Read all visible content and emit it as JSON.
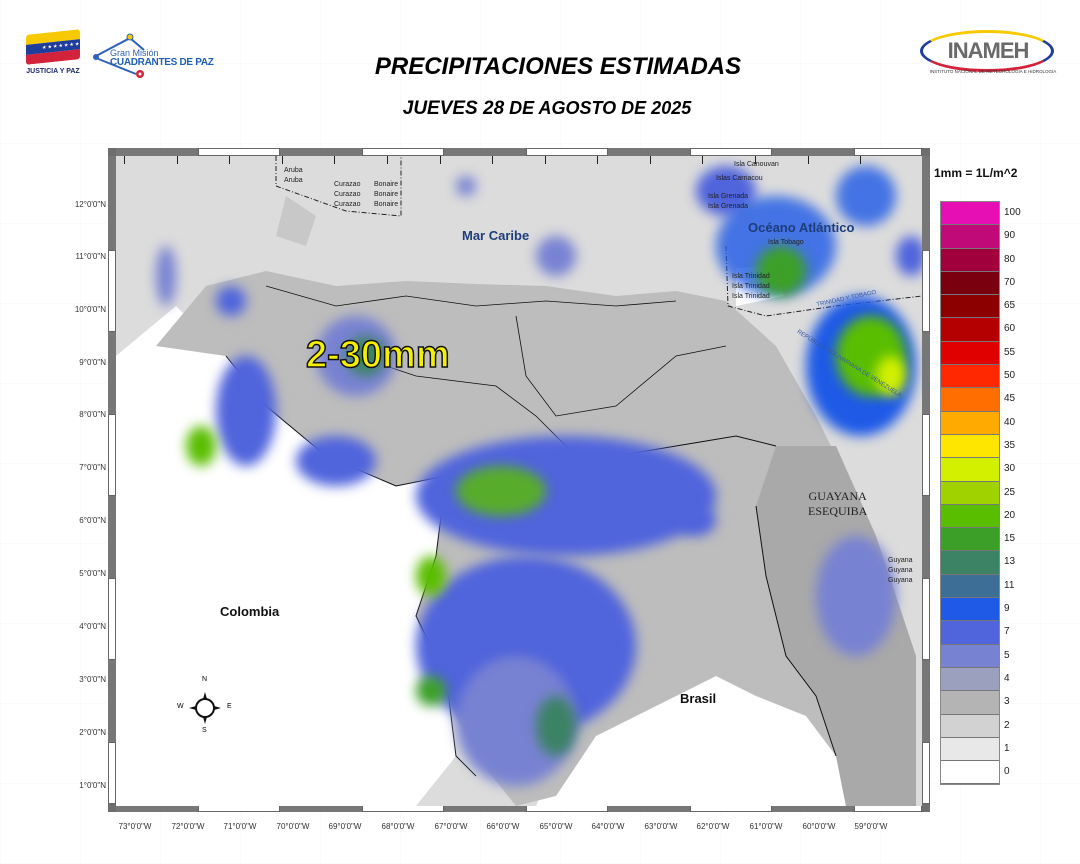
{
  "header": {
    "title": "PRECIPITACIONES ESTIMADAS",
    "subtitle_day": "JUEVES 28",
    "subtitle_rest": " DE AGOSTO DE 2025",
    "logos": {
      "left": {
        "text": "JUSTICIA Y PAZ",
        "icon": "venezuela-flag-icon"
      },
      "center": {
        "line1": "Gran Misión",
        "line2": "CUADRANTES DE PAZ",
        "icon": "location-pin-icon"
      },
      "right": {
        "name": "INAMEH",
        "subtitle": "INSTITUTO NACIONAL DE METEOROLOGÍA E HIDROLOGÍA"
      }
    }
  },
  "map": {
    "labels": {
      "mar_caribe": "Mar Caribe",
      "oceano": "Océano Atlántico",
      "colombia": "Colombia",
      "brasil": "Brasil",
      "guayana_line1": "GUAYANA",
      "guayana_line2": "ESEQUIBA",
      "aruba": [
        "Aruba",
        "Aruba"
      ],
      "curazao": [
        "Curazao",
        "Curazao",
        "Curazao"
      ],
      "bonaire": [
        "Bonaire",
        "Bonaire",
        "Bonaire"
      ],
      "canouvan": "Isla Canouvan",
      "carriacou": "Islas Carriacou",
      "grenada": [
        "Isla Grenada",
        "Isla Grenada"
      ],
      "tobago": "Isla Tobago",
      "trinidad": [
        "Isla Trinidad",
        "Isla Trinidad",
        "Isla Trinidad"
      ],
      "guyana": [
        "Guyana",
        "Guyana",
        "Guyana"
      ],
      "border_text_1": "TRINIDAD Y TOBAGO",
      "border_text_2": "REPÚBLICA BOLIVARIANA DE VENEZUELA"
    },
    "range_annotation": "2-30mm",
    "compass": {
      "n": "N",
      "s": "S",
      "e": "E",
      "w": "W"
    },
    "latitudes": [
      "12°0'0\"N",
      "11°0'0\"N",
      "10°0'0\"N",
      "9°0'0\"N",
      "8°0'0\"N",
      "7°0'0\"N",
      "6°0'0\"N",
      "5°0'0\"N",
      "4°0'0\"N",
      "3°0'0\"N",
      "2°0'0\"N",
      "1°0'0\"N"
    ],
    "longitudes": [
      "73°0'0\"W",
      "72°0'0\"W",
      "71°0'0\"W",
      "70°0'0\"W",
      "69°0'0\"W",
      "68°0'0\"W",
      "67°0'0\"W",
      "66°0'0\"W",
      "65°0'0\"W",
      "64°0'0\"W",
      "63°0'0\"W",
      "62°0'0\"W",
      "61°0'0\"W",
      "60°0'0\"W",
      "59°0'0\"W"
    ]
  },
  "legend": {
    "unit": "1mm = 1L/m^2",
    "items": [
      {
        "value": "100",
        "color": "#e60fb4"
      },
      {
        "value": "90",
        "color": "#c00a78"
      },
      {
        "value": "80",
        "color": "#a0003c"
      },
      {
        "value": "70",
        "color": "#7a0010"
      },
      {
        "value": "65",
        "color": "#8c0000"
      },
      {
        "value": "60",
        "color": "#b40000"
      },
      {
        "value": "55",
        "color": "#e00000"
      },
      {
        "value": "50",
        "color": "#ff2800"
      },
      {
        "value": "45",
        "color": "#ff6e00"
      },
      {
        "value": "40",
        "color": "#ffaa00"
      },
      {
        "value": "35",
        "color": "#ffe600"
      },
      {
        "value": "30",
        "color": "#d2f000"
      },
      {
        "value": "25",
        "color": "#a0d200"
      },
      {
        "value": "20",
        "color": "#5abe00"
      },
      {
        "value": "15",
        "color": "#3ca028"
      },
      {
        "value": "13",
        "color": "#3c8264"
      },
      {
        "value": "11",
        "color": "#3c6e96"
      },
      {
        "value": "9",
        "color": "#1e5ae6"
      },
      {
        "value": "7",
        "color": "#5064dc"
      },
      {
        "value": "5",
        "color": "#7882d2"
      },
      {
        "value": "4",
        "color": "#9aa0be"
      },
      {
        "value": "3",
        "color": "#b4b4b4"
      },
      {
        "value": "2",
        "color": "#d2d2d2"
      },
      {
        "value": "1",
        "color": "#e8e8e8"
      },
      {
        "value": "0",
        "color": "#ffffff"
      }
    ]
  }
}
